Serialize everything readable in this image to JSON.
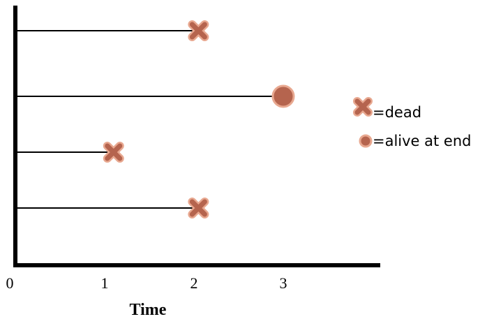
{
  "chart_data": {
    "type": "scatter",
    "xlabel": "Time",
    "ylabel": "",
    "xlim": [
      0,
      4
    ],
    "x_ticks": [
      "0",
      "1",
      "2",
      "3"
    ],
    "subjects": [
      {
        "end": 2.05,
        "status": "dead"
      },
      {
        "end": 3.0,
        "status": "alive at end"
      },
      {
        "end": 1.1,
        "status": "dead"
      },
      {
        "end": 2.05,
        "status": "dead"
      }
    ],
    "legend": [
      {
        "marker": "x",
        "label": "=dead"
      },
      {
        "marker": "circle",
        "label": "=alive at end"
      }
    ],
    "legend_position": "right",
    "colors": {
      "marker_fill": "#b5644e",
      "marker_stroke": "#e8a890",
      "line": "#000000",
      "axis": "#000000"
    }
  }
}
